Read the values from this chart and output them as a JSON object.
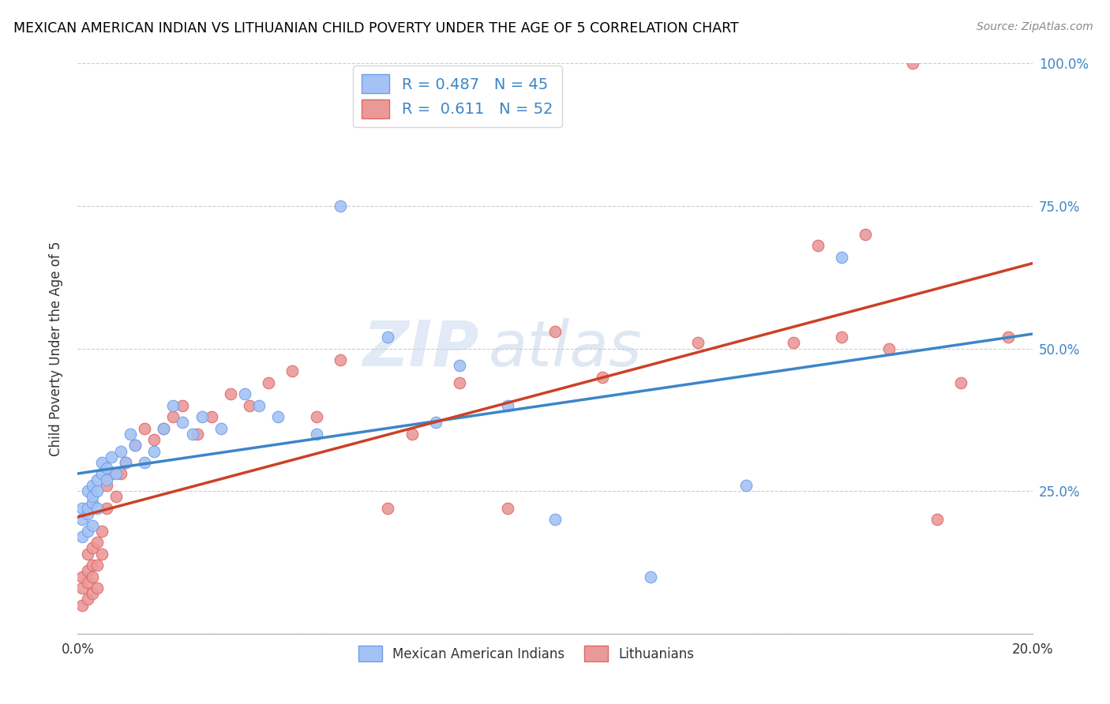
{
  "title": "MEXICAN AMERICAN INDIAN VS LITHUANIAN CHILD POVERTY UNDER THE AGE OF 5 CORRELATION CHART",
  "source": "Source: ZipAtlas.com",
  "ylabel": "Child Poverty Under the Age of 5",
  "xlim": [
    0.0,
    0.2
  ],
  "ylim": [
    0.0,
    1.0
  ],
  "xticks": [
    0.0,
    0.04,
    0.08,
    0.12,
    0.16,
    0.2
  ],
  "xtick_labels": [
    "0.0%",
    "",
    "",
    "",
    "",
    "20.0%"
  ],
  "ytick_labels_right": [
    "",
    "25.0%",
    "50.0%",
    "75.0%",
    "100.0%"
  ],
  "yticks_right": [
    0.0,
    0.25,
    0.5,
    0.75,
    1.0
  ],
  "watermark_zip": "ZIP",
  "watermark_atlas": "atlas",
  "blue_color": "#a4c2f4",
  "blue_edge_color": "#6d9eeb",
  "pink_color": "#ea9999",
  "pink_edge_color": "#e06666",
  "blue_line_color": "#3d85c8",
  "pink_line_color": "#cc4125",
  "legend_blue_r": "R = 0.487",
  "legend_blue_n": "N = 45",
  "legend_pink_r": "R =  0.611",
  "legend_pink_n": "N = 52",
  "legend_blue_label2": "Mexican American Indians",
  "legend_pink_label2": "Lithuanians",
  "blue_scatter_x": [
    0.001,
    0.001,
    0.001,
    0.002,
    0.002,
    0.002,
    0.002,
    0.003,
    0.003,
    0.003,
    0.003,
    0.004,
    0.004,
    0.004,
    0.005,
    0.005,
    0.006,
    0.006,
    0.007,
    0.008,
    0.009,
    0.01,
    0.011,
    0.012,
    0.014,
    0.016,
    0.018,
    0.02,
    0.022,
    0.024,
    0.026,
    0.03,
    0.035,
    0.038,
    0.042,
    0.05,
    0.055,
    0.065,
    0.075,
    0.08,
    0.09,
    0.1,
    0.12,
    0.14,
    0.16
  ],
  "blue_scatter_y": [
    0.17,
    0.2,
    0.22,
    0.18,
    0.21,
    0.22,
    0.25,
    0.19,
    0.23,
    0.24,
    0.26,
    0.22,
    0.25,
    0.27,
    0.28,
    0.3,
    0.27,
    0.29,
    0.31,
    0.28,
    0.32,
    0.3,
    0.35,
    0.33,
    0.3,
    0.32,
    0.36,
    0.4,
    0.37,
    0.35,
    0.38,
    0.36,
    0.42,
    0.4,
    0.38,
    0.35,
    0.75,
    0.52,
    0.37,
    0.47,
    0.4,
    0.2,
    0.1,
    0.26,
    0.66
  ],
  "pink_scatter_x": [
    0.001,
    0.001,
    0.001,
    0.002,
    0.002,
    0.002,
    0.002,
    0.003,
    0.003,
    0.003,
    0.003,
    0.004,
    0.004,
    0.004,
    0.005,
    0.005,
    0.006,
    0.006,
    0.007,
    0.008,
    0.009,
    0.01,
    0.012,
    0.014,
    0.016,
    0.018,
    0.02,
    0.022,
    0.025,
    0.028,
    0.032,
    0.036,
    0.04,
    0.045,
    0.05,
    0.055,
    0.065,
    0.07,
    0.08,
    0.09,
    0.1,
    0.11,
    0.13,
    0.15,
    0.155,
    0.16,
    0.165,
    0.17,
    0.175,
    0.18,
    0.185,
    0.195
  ],
  "pink_scatter_y": [
    0.05,
    0.08,
    0.1,
    0.06,
    0.09,
    0.11,
    0.14,
    0.07,
    0.1,
    0.12,
    0.15,
    0.08,
    0.12,
    0.16,
    0.14,
    0.18,
    0.22,
    0.26,
    0.28,
    0.24,
    0.28,
    0.3,
    0.33,
    0.36,
    0.34,
    0.36,
    0.38,
    0.4,
    0.35,
    0.38,
    0.42,
    0.4,
    0.44,
    0.46,
    0.38,
    0.48,
    0.22,
    0.35,
    0.44,
    0.22,
    0.53,
    0.45,
    0.51,
    0.51,
    0.68,
    0.52,
    0.7,
    0.5,
    1.0,
    0.2,
    0.44,
    0.52
  ]
}
